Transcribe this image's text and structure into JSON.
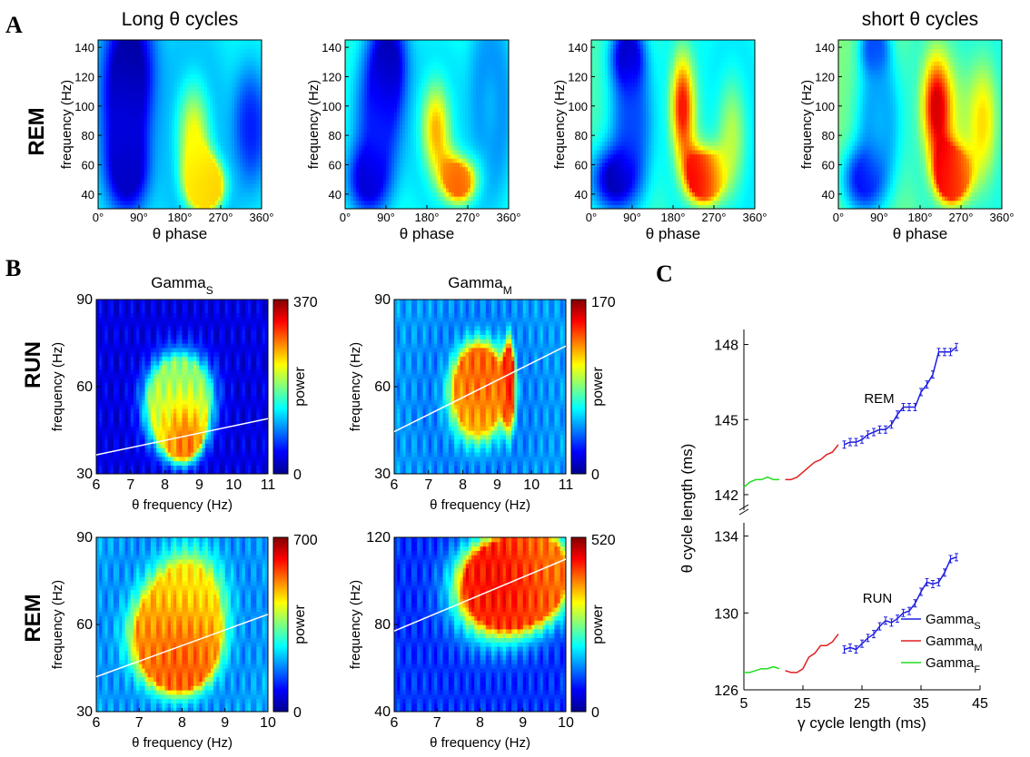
{
  "panel_labels": {
    "a": "A",
    "b": "B",
    "c": "C"
  },
  "row_labels": {
    "a_rem": "REM",
    "b_run": "RUN",
    "b_rem": "REM"
  },
  "chart_data": [
    {
      "id": "A1",
      "type": "heatmap",
      "title": "Long θ cycles",
      "xlabel": "θ phase",
      "ylabel": "frequency (Hz)",
      "xticks": [
        "0°",
        "90°",
        "180°",
        "270°",
        "360°"
      ],
      "xlim": [
        0,
        360
      ],
      "yticks": [
        40,
        60,
        80,
        100,
        120,
        140
      ],
      "ylim": [
        30,
        145
      ],
      "colormap": "jet",
      "blobs": [
        {
          "x": 70,
          "y": 130,
          "value": 0.02,
          "sx": 38,
          "sy": 30
        },
        {
          "x": 65,
          "y": 55,
          "value": 0.05,
          "sx": 30,
          "sy": 18
        },
        {
          "x": 60,
          "y": 90,
          "value": 0.12,
          "sx": 35,
          "sy": 30
        },
        {
          "x": 210,
          "y": 80,
          "value": 0.62,
          "sx": 40,
          "sy": 40
        },
        {
          "x": 245,
          "y": 45,
          "value": 0.68,
          "sx": 35,
          "sy": 15
        },
        {
          "x": 335,
          "y": 85,
          "value": 0.15,
          "sx": 25,
          "sy": 25
        }
      ],
      "base_value": 0.38
    },
    {
      "id": "A2",
      "type": "heatmap",
      "title": "",
      "xlabel": "θ phase",
      "ylabel": "frequency (Hz)",
      "xticks": [
        "0°",
        "90°",
        "180°",
        "270°",
        "360°"
      ],
      "xlim": [
        0,
        360
      ],
      "yticks": [
        40,
        60,
        80,
        100,
        120,
        140
      ],
      "ylim": [
        30,
        145
      ],
      "colormap": "jet",
      "blobs": [
        {
          "x": 95,
          "y": 130,
          "value": 0.03,
          "sx": 30,
          "sy": 25
        },
        {
          "x": 50,
          "y": 50,
          "value": 0.07,
          "sx": 30,
          "sy": 16
        },
        {
          "x": 75,
          "y": 90,
          "value": 0.17,
          "sx": 35,
          "sy": 30
        },
        {
          "x": 200,
          "y": 85,
          "value": 0.7,
          "sx": 35,
          "sy": 35
        },
        {
          "x": 255,
          "y": 48,
          "value": 0.8,
          "sx": 30,
          "sy": 14
        },
        {
          "x": 320,
          "y": 100,
          "value": 0.3,
          "sx": 30,
          "sy": 40
        }
      ],
      "base_value": 0.42
    },
    {
      "id": "A3",
      "type": "heatmap",
      "title": "",
      "xlabel": "θ phase",
      "ylabel": "frequency (Hz)",
      "xticks": [
        "0°",
        "90°",
        "180°",
        "270°",
        "360°"
      ],
      "xlim": [
        0,
        360
      ],
      "yticks": [
        40,
        60,
        80,
        100,
        120,
        140
      ],
      "ylim": [
        30,
        145
      ],
      "colormap": "jet",
      "blobs": [
        {
          "x": 80,
          "y": 135,
          "value": 0.05,
          "sx": 25,
          "sy": 15
        },
        {
          "x": 50,
          "y": 50,
          "value": 0.04,
          "sx": 35,
          "sy": 15
        },
        {
          "x": 90,
          "y": 90,
          "value": 0.2,
          "sx": 30,
          "sy": 30
        },
        {
          "x": 200,
          "y": 100,
          "value": 0.86,
          "sx": 28,
          "sy": 40
        },
        {
          "x": 245,
          "y": 50,
          "value": 0.9,
          "sx": 28,
          "sy": 15
        },
        {
          "x": 310,
          "y": 80,
          "value": 0.55,
          "sx": 40,
          "sy": 50
        }
      ],
      "base_value": 0.45
    },
    {
      "id": "A4",
      "type": "heatmap",
      "title": "short θ cycles",
      "xlabel": "θ phase",
      "ylabel": "frequency (Hz)",
      "xticks": [
        "0°",
        "90°",
        "180°",
        "270°",
        "360°"
      ],
      "xlim": [
        0,
        360
      ],
      "yticks": [
        40,
        60,
        80,
        100,
        120,
        140
      ],
      "ylim": [
        30,
        145
      ],
      "colormap": "jet",
      "blobs": [
        {
          "x": 80,
          "y": 140,
          "value": 0.18,
          "sx": 20,
          "sy": 12
        },
        {
          "x": 55,
          "y": 50,
          "value": 0.12,
          "sx": 30,
          "sy": 15
        },
        {
          "x": 90,
          "y": 90,
          "value": 0.3,
          "sx": 30,
          "sy": 30
        },
        {
          "x": 215,
          "y": 100,
          "value": 0.92,
          "sx": 35,
          "sy": 40
        },
        {
          "x": 250,
          "y": 50,
          "value": 0.85,
          "sx": 28,
          "sy": 15
        },
        {
          "x": 320,
          "y": 90,
          "value": 0.65,
          "sx": 40,
          "sy": 50
        }
      ],
      "base_value": 0.5
    },
    {
      "id": "B1",
      "type": "heatmap",
      "title": "Gamma",
      "title_sub": "S",
      "xlabel": "θ frequency (Hz)",
      "ylabel": "frequency (Hz)",
      "xticks": [
        6,
        7,
        8,
        9,
        10,
        11
      ],
      "xlim": [
        6,
        11
      ],
      "yticks": [
        30,
        60,
        90
      ],
      "ylim": [
        30,
        90
      ],
      "colormap": "jet",
      "colorbar_label": "power",
      "colorbar_ticks": [
        "370",
        "0"
      ],
      "blobs": [
        {
          "x": 8.55,
          "y": 45,
          "value": 0.95,
          "sx": 0.35,
          "sy": 7
        },
        {
          "x": 8.3,
          "y": 50,
          "value": 0.65,
          "sx": 0.7,
          "sy": 12
        },
        {
          "x": 8.5,
          "y": 60,
          "value": 0.45,
          "sx": 0.8,
          "sy": 12
        }
      ],
      "base_value": 0.1,
      "fit_line": {
        "x": [
          6,
          11
        ],
        "y": [
          36.5,
          49
        ]
      }
    },
    {
      "id": "B2",
      "type": "heatmap",
      "title": "Gamma",
      "title_sub": "M",
      "xlabel": "θ frequency (Hz)",
      "ylabel": "frequency (Hz)",
      "xticks": [
        6,
        7,
        8,
        9,
        10,
        11
      ],
      "xlim": [
        6,
        11
      ],
      "yticks": [
        30,
        60,
        90
      ],
      "ylim": [
        30,
        90
      ],
      "colormap": "jet",
      "colorbar_label": "power",
      "colorbar_ticks": [
        "170",
        "0"
      ],
      "blobs": [
        {
          "x": 8.5,
          "y": 62,
          "value": 0.88,
          "sx": 0.5,
          "sy": 10
        },
        {
          "x": 9.35,
          "y": 62,
          "value": 0.92,
          "sx": 0.12,
          "sy": 12
        },
        {
          "x": 8.4,
          "y": 55,
          "value": 0.65,
          "sx": 0.8,
          "sy": 15
        }
      ],
      "base_value": 0.28,
      "fit_line": {
        "x": [
          6,
          11
        ],
        "y": [
          44.5,
          74
        ]
      }
    },
    {
      "id": "B3",
      "type": "heatmap",
      "title": "",
      "xlabel": "θ frequency (Hz)",
      "ylabel": "frequency (Hz)",
      "xticks": [
        6,
        7,
        8,
        9,
        10
      ],
      "xlim": [
        6,
        10
      ],
      "yticks": [
        30,
        60,
        90
      ],
      "ylim": [
        30,
        90
      ],
      "colormap": "jet",
      "colorbar_label": "power",
      "colorbar_ticks": [
        "700",
        "0"
      ],
      "blobs": [
        {
          "x": 8.0,
          "y": 50,
          "value": 0.88,
          "sx": 0.5,
          "sy": 9
        },
        {
          "x": 7.6,
          "y": 55,
          "value": 0.75,
          "sx": 0.8,
          "sy": 14
        },
        {
          "x": 8.2,
          "y": 70,
          "value": 0.62,
          "sx": 0.8,
          "sy": 18
        }
      ],
      "base_value": 0.3,
      "fit_line": {
        "x": [
          6,
          10
        ],
        "y": [
          42,
          63.5
        ]
      }
    },
    {
      "id": "B4",
      "type": "heatmap",
      "title": "",
      "xlabel": "θ frequency (Hz)",
      "ylabel": "frequency (Hz)",
      "xticks": [
        6,
        7,
        8,
        9,
        10
      ],
      "xlim": [
        6,
        10
      ],
      "yticks": [
        40,
        80,
        120
      ],
      "ylim": [
        40,
        120
      ],
      "colormap": "jet",
      "colorbar_label": "power",
      "colorbar_ticks": [
        "520",
        "0"
      ],
      "blobs": [
        {
          "x": 8.6,
          "y": 100,
          "value": 0.95,
          "sx": 0.6,
          "sy": 12
        },
        {
          "x": 8.4,
          "y": 95,
          "value": 0.8,
          "sx": 1.0,
          "sy": 22
        },
        {
          "x": 9.5,
          "y": 105,
          "value": 0.72,
          "sx": 0.6,
          "sy": 15
        }
      ],
      "base_value": 0.18,
      "fit_line": {
        "x": [
          6,
          10
        ],
        "y": [
          77,
          110
        ]
      }
    },
    {
      "id": "C",
      "type": "line",
      "xlabel": "γ cycle length (ms)",
      "ylabel": "θ cycle length (ms)",
      "xticks": [
        5,
        15,
        25,
        35,
        45
      ],
      "xlim": [
        5,
        45
      ],
      "upper": {
        "label": "REM",
        "yticks": [
          142,
          145,
          148
        ],
        "ylim": [
          141.6,
          148.6
        ]
      },
      "lower": {
        "label": "RUN",
        "yticks": [
          126,
          130,
          134
        ],
        "ylim": [
          126,
          134.5
        ]
      },
      "series": [
        {
          "name": "Gamma",
          "sub": "S",
          "color": "#1f1fe0",
          "rem_x": [
            22,
            23,
            24,
            25,
            26,
            27,
            28,
            29,
            30,
            31,
            32,
            33,
            34,
            35,
            36,
            37,
            38,
            39,
            40,
            41
          ],
          "rem_y": [
            144.0,
            144.1,
            144.1,
            144.2,
            144.4,
            144.5,
            144.6,
            144.6,
            144.8,
            145.2,
            145.5,
            145.5,
            145.5,
            146.1,
            146.4,
            146.8,
            147.7,
            147.7,
            147.7,
            147.9
          ],
          "run_x": [
            22,
            23,
            24,
            25,
            26,
            27,
            28,
            29,
            30,
            31,
            32,
            33,
            34,
            35,
            36,
            37,
            38,
            39,
            40,
            41
          ],
          "run_y": [
            128.1,
            128.2,
            128.1,
            128.4,
            128.7,
            128.9,
            129.3,
            129.6,
            129.5,
            129.7,
            130.0,
            130.1,
            130.5,
            131.1,
            131.6,
            131.5,
            131.6,
            132.1,
            132.8,
            132.9
          ]
        },
        {
          "name": "Gamma",
          "sub": "M",
          "color": "#e01f1f",
          "rem_x": [
            12,
            13,
            14,
            15,
            16,
            17,
            18,
            19,
            20,
            21
          ],
          "rem_y": [
            142.6,
            142.6,
            142.7,
            142.9,
            143.1,
            143.3,
            143.4,
            143.6,
            143.7,
            144.0
          ],
          "run_x": [
            12,
            13,
            14,
            15,
            16,
            17,
            18,
            19,
            20,
            21
          ],
          "run_y": [
            127.0,
            126.9,
            126.9,
            127.1,
            127.7,
            127.9,
            128.3,
            128.3,
            128.5,
            128.9
          ]
        },
        {
          "name": "Gamma",
          "sub": "F",
          "color": "#22dd22",
          "rem_x": [
            5,
            6,
            7,
            8,
            9,
            10,
            11
          ],
          "rem_y": [
            142.3,
            142.5,
            142.6,
            142.6,
            142.7,
            142.6,
            142.6
          ],
          "run_x": [
            5,
            6,
            7,
            8,
            9,
            10,
            11
          ],
          "run_y": [
            126.9,
            126.9,
            127.0,
            127.1,
            127.1,
            127.2,
            127.1
          ]
        }
      ]
    }
  ]
}
